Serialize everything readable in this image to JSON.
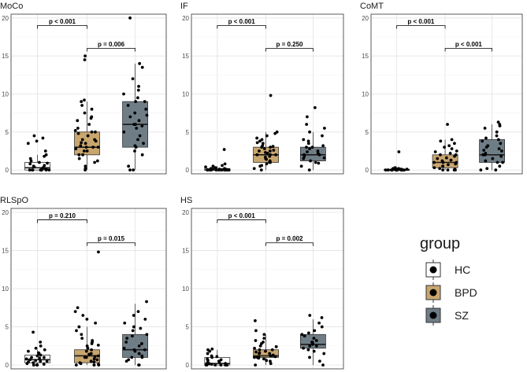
{
  "chart_data": {
    "type": "boxplot",
    "legend": {
      "title": "group",
      "entries": [
        {
          "label": "HC",
          "color": "#ffffff"
        },
        {
          "label": "BPD",
          "color": "#c9a66e"
        },
        {
          "label": "SZ",
          "color": "#6f7d86"
        }
      ]
    },
    "y_ticks": [
      "0",
      "5",
      "10",
      "15",
      "20"
    ],
    "ylim": [
      -0.5,
      20.5
    ],
    "panels": [
      {
        "title": "MoCo",
        "boxes": [
          {
            "group": "HC",
            "min": 0,
            "q1": 0,
            "median": 0.3,
            "q3": 1,
            "max": 2,
            "points": [
              0,
              0,
              0,
              0,
              0,
              0,
              0,
              0.1,
              0.2,
              0.2,
              0.3,
              0.5,
              0.6,
              0.8,
              1,
              1.2,
              1.5,
              1.8,
              2,
              2.5,
              3.5,
              3.8,
              4.2,
              4.5,
              0,
              0.4,
              0.9,
              0
            ]
          },
          {
            "group": "BPD",
            "min": 0,
            "q1": 2,
            "median": 3,
            "q3": 5,
            "max": 9,
            "points": [
              0,
              0.5,
              1,
              1.5,
              2,
              2,
              2.5,
              2.5,
              3,
              3,
              3,
              3.2,
              3.5,
              3.8,
              4,
              4,
              4.5,
              5,
              5,
              5.5,
              6,
              6.5,
              7,
              7.5,
              8,
              9,
              9.2,
              14.5,
              15,
              1.2,
              0.2,
              2.8,
              3.6,
              4.8,
              6.8,
              5.2,
              8.5
            ]
          },
          {
            "group": "SZ",
            "min": 0,
            "q1": 3,
            "median": 6,
            "q3": 9,
            "max": 14,
            "points": [
              0,
              0,
              0.5,
              2,
              2.5,
              3,
              3.5,
              4,
              4.5,
              5,
              5.5,
              6,
              6,
              6.5,
              7,
              7.5,
              8,
              8.5,
              9,
              9,
              9.5,
              10,
              10.5,
              11,
              12,
              13.5,
              14,
              20,
              5.8,
              7.2,
              3.2
            ]
          }
        ],
        "annotations": [
          {
            "label": "p < 0.001",
            "from": "HC",
            "to": "BPD"
          },
          {
            "label": "p = 0.006",
            "from": "BPD",
            "to": "SZ"
          }
        ]
      },
      {
        "title": "IF",
        "boxes": [
          {
            "group": "HC",
            "min": 0,
            "q1": 0,
            "median": 0,
            "q3": 0.2,
            "max": 0.5,
            "points": [
              0,
              0,
              0,
              0,
              0,
              0,
              0,
              0,
              0,
              0,
              0,
              0,
              0.1,
              0.1,
              0.2,
              0.2,
              0.3,
              0.3,
              0.4,
              0.5,
              0.6,
              0.8,
              2.7,
              0,
              0.1,
              0
            ]
          },
          {
            "group": "BPD",
            "min": 0,
            "q1": 1,
            "median": 2,
            "q3": 3,
            "max": 5,
            "points": [
              0,
              0.2,
              0.5,
              0.8,
              1,
              1,
              1.2,
              1.5,
              1.8,
              2,
              2,
              2,
              2.2,
              2.5,
              2.5,
              2.8,
              3,
              3,
              3.2,
              3.5,
              3.8,
              4,
              4.2,
              4.5,
              5,
              9.8,
              1.4,
              2.6,
              3.1,
              0.6,
              1.7,
              2.3,
              3.6,
              4.8
            ]
          },
          {
            "group": "SZ",
            "min": 0,
            "q1": 1.2,
            "median": 2,
            "q3": 3,
            "max": 5,
            "points": [
              0,
              0.5,
              1,
              1.2,
              1.5,
              1.8,
              2,
              2,
              2,
              2.2,
              2.5,
              2.8,
              3,
              3,
              3.2,
              3.5,
              4,
              4.5,
              5,
              5.5,
              6,
              7,
              8.2,
              1.6,
              2.4,
              0.9,
              3.8
            ]
          }
        ],
        "annotations": [
          {
            "label": "p < 0.001",
            "from": "HC",
            "to": "BPD"
          },
          {
            "label": "p = 0.250",
            "from": "BPD",
            "to": "SZ"
          }
        ]
      },
      {
        "title": "CoMT",
        "boxes": [
          {
            "group": "HC",
            "min": 0,
            "q1": 0,
            "median": 0,
            "q3": 0.1,
            "max": 0.3,
            "points": [
              0,
              0,
              0,
              0,
              0,
              0,
              0,
              0,
              0,
              0,
              0,
              0,
              0,
              0,
              0.1,
              0.1,
              0.1,
              0.2,
              0.2,
              0.3,
              0.3,
              2.4,
              0,
              0.1
            ]
          },
          {
            "group": "BPD",
            "min": 0,
            "q1": 0.3,
            "median": 1,
            "q3": 2,
            "max": 4,
            "points": [
              0,
              0,
              0,
              0,
              0.2,
              0.3,
              0.5,
              0.5,
              0.8,
              1,
              1,
              1,
              1.2,
              1.5,
              1.8,
              2,
              2,
              2.2,
              2.5,
              2.8,
              3,
              3.2,
              3.5,
              3.8,
              4,
              6,
              0.7,
              1.6,
              2.4,
              0.1,
              1.3
            ]
          },
          {
            "group": "SZ",
            "min": 0,
            "q1": 1,
            "median": 2,
            "q3": 4,
            "max": 6,
            "points": [
              0,
              0,
              0.2,
              0.5,
              1,
              1,
              1.5,
              1.8,
              2,
              2,
              2.2,
              2.5,
              2.8,
              3,
              3.2,
              3.5,
              4,
              4.5,
              5,
              5.5,
              5.8,
              6,
              6.3,
              1.2,
              2.6,
              3.8,
              4.2
            ]
          }
        ],
        "annotations": [
          {
            "label": "p < 0.001",
            "from": "HC",
            "to": "BPD"
          },
          {
            "label": "p < 0.001",
            "from": "BPD",
            "to": "SZ"
          }
        ]
      },
      {
        "title": "RLSpO",
        "boxes": [
          {
            "group": "HC",
            "min": 0,
            "q1": 0.3,
            "median": 0.7,
            "q3": 1.3,
            "max": 2,
            "points": [
              0,
              0,
              0,
              0.2,
              0.3,
              0.5,
              0.5,
              0.7,
              0.8,
              1,
              1,
              1.2,
              1.3,
              1.5,
              1.8,
              2,
              2.2,
              2.5,
              3,
              4.3,
              0.4,
              0.9,
              1.6,
              0.1,
              0.6
            ]
          },
          {
            "group": "BPD",
            "min": 0,
            "q1": 0.3,
            "median": 1.2,
            "q3": 2,
            "max": 5,
            "points": [
              0,
              0,
              0,
              0,
              0.2,
              0.3,
              0.5,
              0.7,
              1,
              1,
              1.2,
              1.5,
              1.8,
              2,
              2.2,
              2.5,
              2.8,
              3,
              3.5,
              4,
              4.5,
              5,
              5.5,
              6,
              6.5,
              7,
              7.5,
              14.8,
              0.8,
              1.4,
              2.6,
              0.4,
              3.2,
              1.1,
              0.1
            ]
          },
          {
            "group": "SZ",
            "min": 0,
            "q1": 1,
            "median": 2,
            "q3": 4,
            "max": 8,
            "points": [
              0,
              0,
              0.5,
              1,
              1,
              1.5,
              1.8,
              2,
              2,
              2.2,
              2.5,
              3,
              3.5,
              4,
              4.5,
              5,
              5.5,
              6,
              6.5,
              7,
              8.3,
              1.2,
              2.8,
              3.8,
              0.7,
              4.8
            ]
          }
        ],
        "annotations": [
          {
            "label": "p = 0.210",
            "from": "HC",
            "to": "BPD"
          },
          {
            "label": "p = 0.015",
            "from": "BPD",
            "to": "SZ"
          }
        ]
      },
      {
        "title": "HS",
        "boxes": [
          {
            "group": "HC",
            "min": 0,
            "q1": 0,
            "median": 0.2,
            "q3": 1,
            "max": 2,
            "points": [
              0,
              0,
              0,
              0,
              0,
              0,
              0.1,
              0.2,
              0.3,
              0.4,
              0.5,
              0.7,
              0.8,
              1,
              1.2,
              1.5,
              1.8,
              2,
              2.1,
              0.2,
              0.6,
              1.1,
              0
            ]
          },
          {
            "group": "BPD",
            "min": 0,
            "q1": 1,
            "median": 1.2,
            "q3": 2,
            "max": 4,
            "points": [
              0,
              0.2,
              0.5,
              0.8,
              1,
              1,
              1,
              1.2,
              1.2,
              1.5,
              1.5,
              1.8,
              2,
              2,
              2.2,
              2.5,
              2.8,
              3,
              3.5,
              4,
              4.5,
              5.8,
              1.1,
              1.7,
              0.6,
              2.4,
              1.3,
              0.9,
              3.2,
              1.6
            ]
          },
          {
            "group": "SZ",
            "min": 0,
            "q1": 2.2,
            "median": 2.7,
            "q3": 4,
            "max": 6,
            "points": [
              0,
              0.5,
              1,
              1.5,
              2,
              2.2,
              2.5,
              2.5,
              2.8,
              3,
              3,
              3.2,
              3.5,
              4,
              4.5,
              5,
              5.5,
              6.2,
              6.5,
              2.7,
              3.8,
              1.8,
              4.2
            ]
          }
        ],
        "annotations": [
          {
            "label": "p < 0.001",
            "from": "HC",
            "to": "BPD"
          },
          {
            "label": "p = 0.002",
            "from": "BPD",
            "to": "SZ"
          }
        ]
      }
    ]
  }
}
